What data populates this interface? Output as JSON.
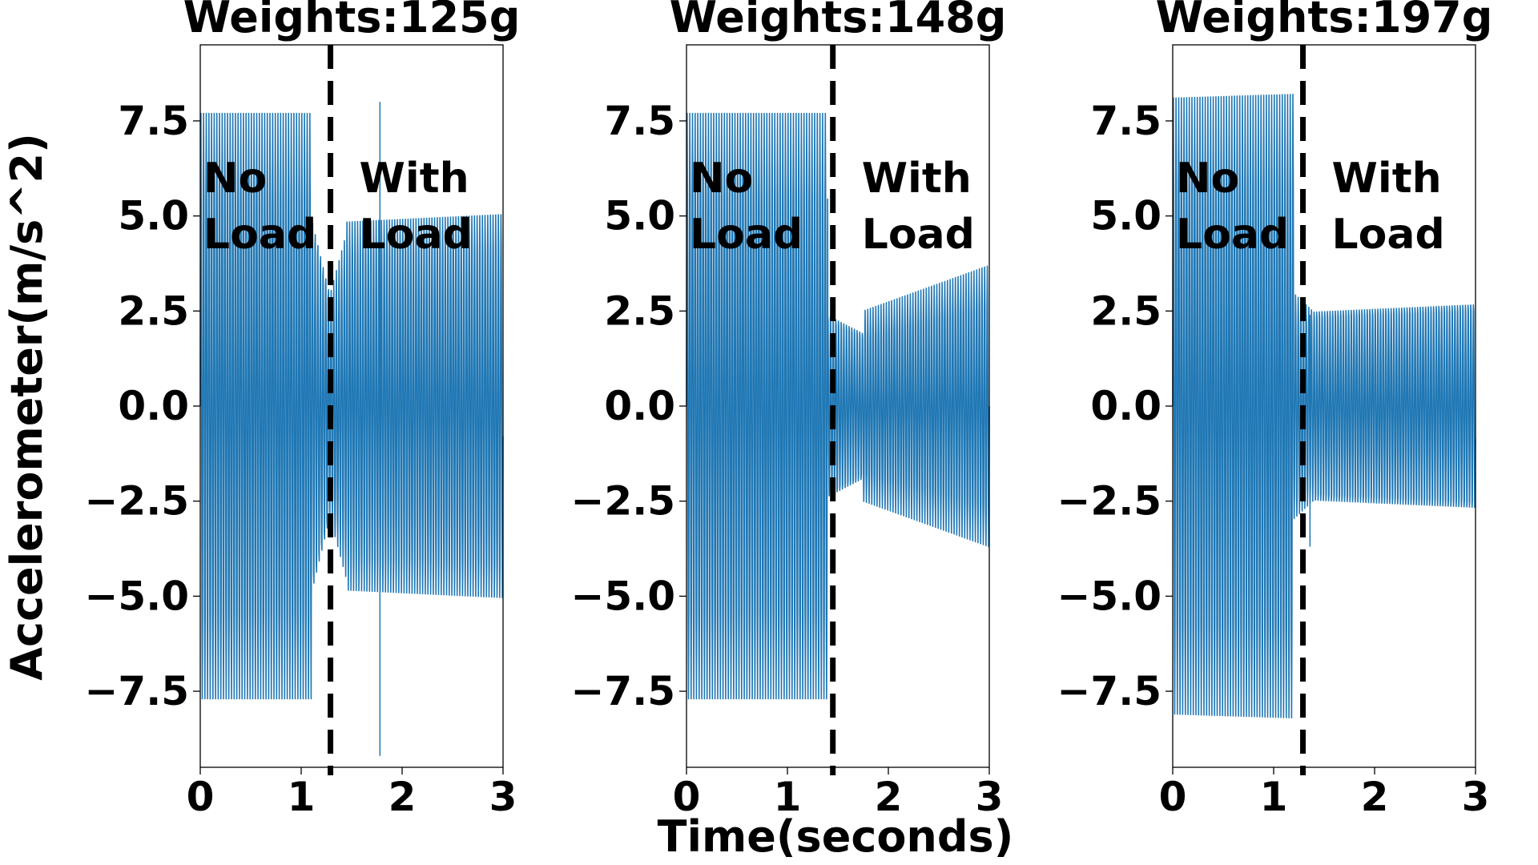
{
  "figure": {
    "ylabel": "Accelerometer(m/s^2)",
    "xlabel": "Time(seconds)"
  },
  "chart_data": [
    {
      "type": "line",
      "title": "Weights:125g",
      "xlim": [
        0,
        3
      ],
      "ylim": [
        -9.5,
        9.5
      ],
      "xticks": [
        0,
        1,
        2,
        3
      ],
      "yticks": [
        -7.5,
        -5.0,
        -2.5,
        0.0,
        2.5,
        5.0,
        7.5
      ],
      "xtick_labels": [
        "0",
        "1",
        "2",
        "3"
      ],
      "ytick_labels": [
        "−7.5",
        "−5.0",
        "−2.5",
        "0.0",
        "2.5",
        "5.0",
        "7.5"
      ],
      "grid": false,
      "color": "#1f77b4",
      "divider_x": 1.29,
      "annotations": [
        {
          "lines": [
            "No",
            "Load"
          ]
        },
        {
          "lines": [
            "With",
            "Load"
          ]
        }
      ],
      "series": [
        {
          "frequency_hz": 38,
          "segments": [
            {
              "x": [
                0,
                1.1
              ],
              "amplitude": [
                7.7,
                7.7
              ]
            },
            {
              "x": [
                1.1,
                1.29
              ],
              "amplitude": [
                5.2,
                3.0
              ]
            },
            {
              "x": [
                1.29,
                1.45
              ],
              "amplitude": [
                3.0,
                4.6
              ]
            },
            {
              "x": [
                1.45,
                3
              ],
              "amplitude": [
                4.9,
                5.1
              ]
            }
          ],
          "spikes": [
            {
              "x": 1.78,
              "y": [
                -9.2,
                8.0
              ]
            }
          ]
        }
      ]
    },
    {
      "type": "line",
      "title": "Weights:148g",
      "xlim": [
        0,
        3
      ],
      "ylim": [
        -9.5,
        9.5
      ],
      "xticks": [
        0,
        1,
        2,
        3
      ],
      "yticks": [
        -7.5,
        -5.0,
        -2.5,
        0.0,
        2.5,
        5.0,
        7.5
      ],
      "xtick_labels": [
        "0",
        "1",
        "2",
        "3"
      ],
      "ytick_labels": [
        "−7.5",
        "−5.0",
        "−2.5",
        "0.0",
        "2.5",
        "5.0",
        "7.5"
      ],
      "grid": false,
      "color": "#1f77b4",
      "divider_x": 1.45,
      "annotations": [
        {
          "lines": [
            "No",
            "Load"
          ]
        },
        {
          "lines": [
            "With",
            "Load"
          ]
        }
      ],
      "series": [
        {
          "frequency_hz": 38,
          "segments": [
            {
              "x": [
                0,
                1.4
              ],
              "amplitude": [
                7.7,
                7.7
              ]
            },
            {
              "x": [
                1.4,
                1.75
              ],
              "amplitude": [
                2.5,
                2.0
              ]
            },
            {
              "x": [
                1.75,
                3
              ],
              "amplitude": [
                2.5,
                3.7
              ]
            }
          ],
          "spikes": []
        }
      ]
    },
    {
      "type": "line",
      "title": "Weights:197g",
      "xlim": [
        0,
        3
      ],
      "ylim": [
        -9.5,
        9.5
      ],
      "xticks": [
        0,
        1,
        2,
        3
      ],
      "yticks": [
        -7.5,
        -5.0,
        -2.5,
        0.0,
        2.5,
        5.0,
        7.5
      ],
      "xtick_labels": [
        "0",
        "1",
        "2",
        "3"
      ],
      "ytick_labels": [
        "−7.5",
        "−5.0",
        "−2.5",
        "0.0",
        "2.5",
        "5.0",
        "7.5"
      ],
      "grid": false,
      "color": "#1f77b4",
      "divider_x": 1.29,
      "annotations": [
        {
          "lines": [
            "No",
            "Load"
          ]
        },
        {
          "lines": [
            "With",
            "Load"
          ]
        }
      ],
      "series": [
        {
          "frequency_hz": 38,
          "segments": [
            {
              "x": [
                0,
                1.2
              ],
              "amplitude": [
                8.1,
                8.2
              ]
            },
            {
              "x": [
                1.2,
                1.4
              ],
              "amplitude": [
                3.0,
                2.5
              ]
            },
            {
              "x": [
                1.4,
                3
              ],
              "amplitude": [
                2.6,
                2.8
              ]
            }
          ],
          "spikes": [
            {
              "x": 1.36,
              "y": [
                -3.7,
                2.4
              ]
            }
          ]
        }
      ]
    }
  ]
}
